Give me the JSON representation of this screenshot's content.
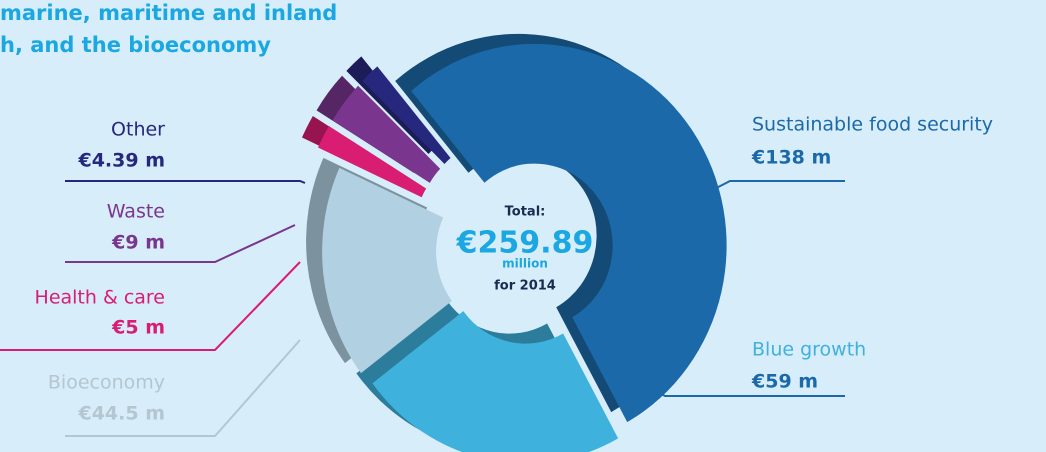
{
  "chart_data": {
    "type": "donut",
    "title_lines": [
      "marine, maritime and inland",
      "h, and the bioeconomy"
    ],
    "categories": [
      "Sustainable food security",
      "Blue growth",
      "Bioeconomy",
      "Health & care",
      "Waste",
      "Other"
    ],
    "values": [
      138,
      59,
      44.5,
      5,
      9,
      4.39
    ],
    "value_labels": [
      "€138 m",
      "€59 m",
      "€44.5 m",
      "€5 m",
      "€9 m",
      "€4.39 m"
    ],
    "colors": [
      "#1b69a9",
      "#3fb1dd",
      "#b1d0e2",
      "#d81d73",
      "#7a358f",
      "#26287d"
    ],
    "center_text": [
      "Total:",
      "€259.89",
      "million",
      "for 2014"
    ]
  }
}
